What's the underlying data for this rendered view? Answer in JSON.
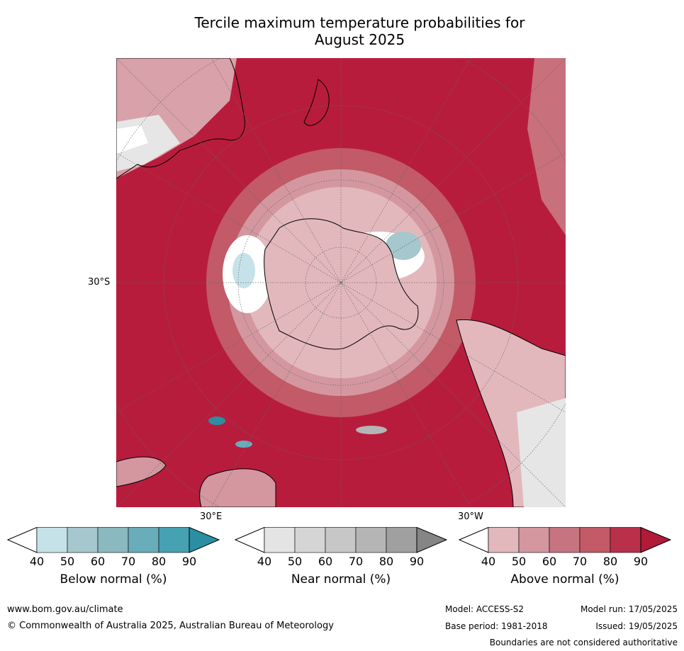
{
  "title_line1": "Tercile maximum temperature probabilities for",
  "title_line2": "August 2025",
  "map": {
    "labels": {
      "lat_30s": "30°S",
      "lon_30e": "30°E",
      "lon_30w": "30°W"
    },
    "colors": {
      "above_dominant": "#b81c3c",
      "ocean_light": "#e2b8bd",
      "below_light": "#c6e2e9",
      "land_outline": "#000000"
    }
  },
  "colorbars": [
    {
      "name": "below",
      "title": "Below normal (%)",
      "colors": [
        "#c6e2e9",
        "#a5c7cd",
        "#8ab9bf",
        "#69acba",
        "#46a1b1",
        "#2b8fa3"
      ]
    },
    {
      "name": "near",
      "title": "Near normal (%)",
      "colors": [
        "#e4e4e4",
        "#d5d5d5",
        "#c7c7c7",
        "#b5b5b5",
        "#a0a0a0",
        "#858585"
      ]
    },
    {
      "name": "above",
      "title": "Above normal (%)",
      "colors": [
        "#e2b8bd",
        "#d4979f",
        "#c6747f",
        "#c25a67",
        "#b9304b",
        "#b11a38"
      ]
    }
  ],
  "ticks": [
    "40",
    "50",
    "60",
    "70",
    "80",
    "90"
  ],
  "footer": {
    "url": "www.bom.gov.au/climate",
    "copyright": "© Commonwealth of Australia 2025, Australian Bureau of Meteorology",
    "model": "Model: ACCESS-S2",
    "base_period": "Base period: 1981-2018",
    "model_run": "Model run: 17/05/2025",
    "issued": "Issued: 19/05/2025",
    "disclaimer": "Boundaries are not considered authoritative"
  }
}
